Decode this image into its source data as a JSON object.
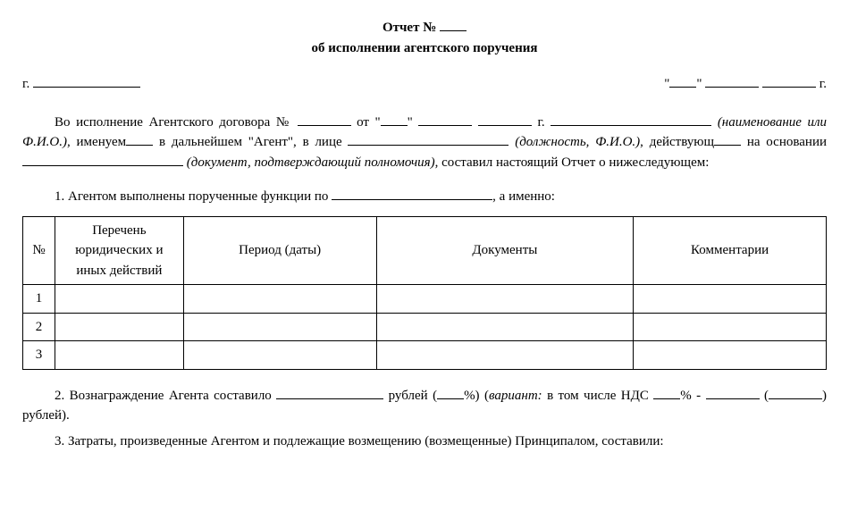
{
  "title": {
    "line1_prefix": "Отчет №",
    "line2": "об исполнении агентского поручения"
  },
  "city_prefix": "г.",
  "date_suffix": "г.",
  "intro": {
    "p1_a": "Во исполнение Агентского договора №",
    "p1_b": "от",
    "p1_c": "г.",
    "p2_hint1": "(наименование или Ф.И.О.)",
    "p2_a": ", именуем",
    "p2_b": " в дальнейшем \"Агент\", в лице",
    "p3_hint2": "(должность, Ф.И.О.)",
    "p3_a": ", действующ",
    "p3_b": " на основании",
    "p3_hint3": "(документ, подтверждающий полномочия)",
    "p3_c": ", составил настоящий Отчет о нижеследующем:"
  },
  "section1": {
    "text_a": "1. Агентом выполнены порученные функции по",
    "text_b": ", а именно:"
  },
  "table": {
    "headers": {
      "num": "№",
      "actions": "Перечень юридических и иных действий",
      "period": "Период (даты)",
      "docs": "Документы",
      "comments": "Комментарии"
    },
    "rows": [
      {
        "num": "1"
      },
      {
        "num": "2"
      },
      {
        "num": "3"
      }
    ]
  },
  "section2": {
    "text_a": "2. Вознаграждение Агента составило",
    "text_b": "рублей (",
    "text_c": "%) (",
    "variant_label": "вариант:",
    "text_d": " в том числе НДС",
    "text_e": "% -",
    "text_f": "(",
    "text_g": ") рублей)."
  },
  "section3": {
    "text": "3. Затраты, произведенные Агентом и подлежащие возмещению (возмещенные) Принципалом, составили:"
  }
}
